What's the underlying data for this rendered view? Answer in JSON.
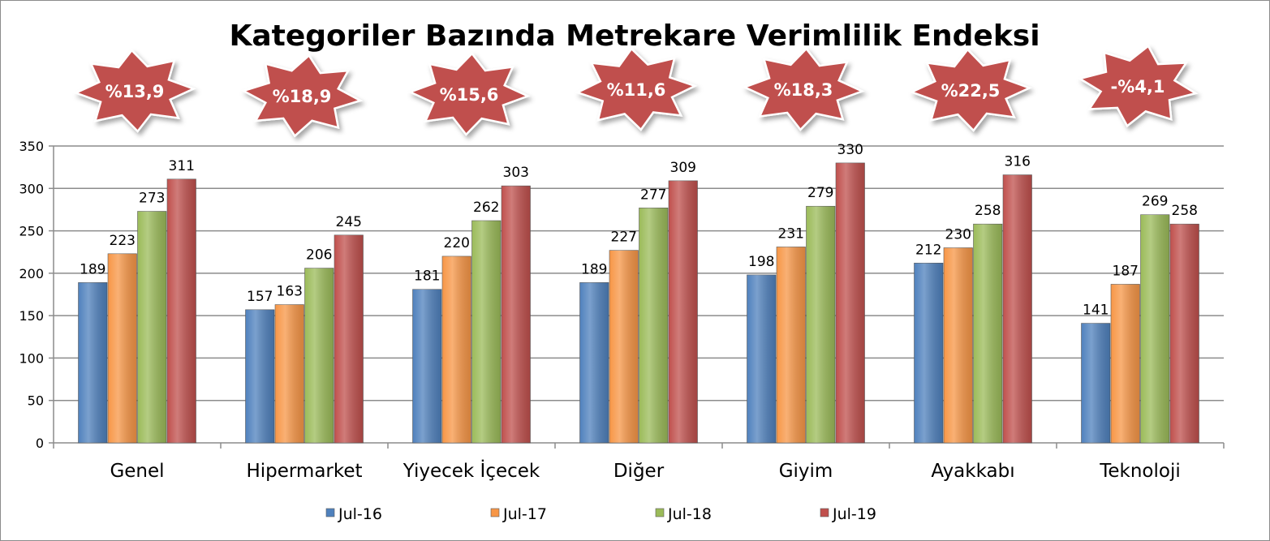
{
  "chart_data": {
    "type": "bar",
    "title": "Kategoriler Bazında Metrekare Verimlilik Endeksi",
    "categories": [
      "Genel",
      "Hipermarket",
      "Yiyecek İçecek",
      "Diğer",
      "Giyim",
      "Ayakkabı",
      "Teknoloji"
    ],
    "series": [
      {
        "name": "Jul-16",
        "color": "#4f81bd",
        "values": [
          189,
          157,
          181,
          189,
          198,
          212,
          141
        ]
      },
      {
        "name": "Jul-17",
        "color": "#f79646",
        "values": [
          223,
          163,
          220,
          227,
          231,
          230,
          187
        ]
      },
      {
        "name": "Jul-18",
        "color": "#9bbb59",
        "values": [
          273,
          206,
          262,
          277,
          279,
          258,
          269
        ]
      },
      {
        "name": "Jul-19",
        "color": "#c0504d",
        "values": [
          311,
          245,
          303,
          309,
          330,
          316,
          258
        ]
      }
    ],
    "growth_badges": [
      "%13,9",
      "%18,9",
      "%15,6",
      "%11,6",
      "%18,3",
      "%22,5",
      "-%4,1"
    ],
    "badge_color": "#c0504d",
    "ylim": [
      0,
      350
    ],
    "yticks": [
      0,
      50,
      100,
      150,
      200,
      250,
      300,
      350
    ],
    "grid": true,
    "legend_position": "bottom",
    "data_labels": true
  }
}
